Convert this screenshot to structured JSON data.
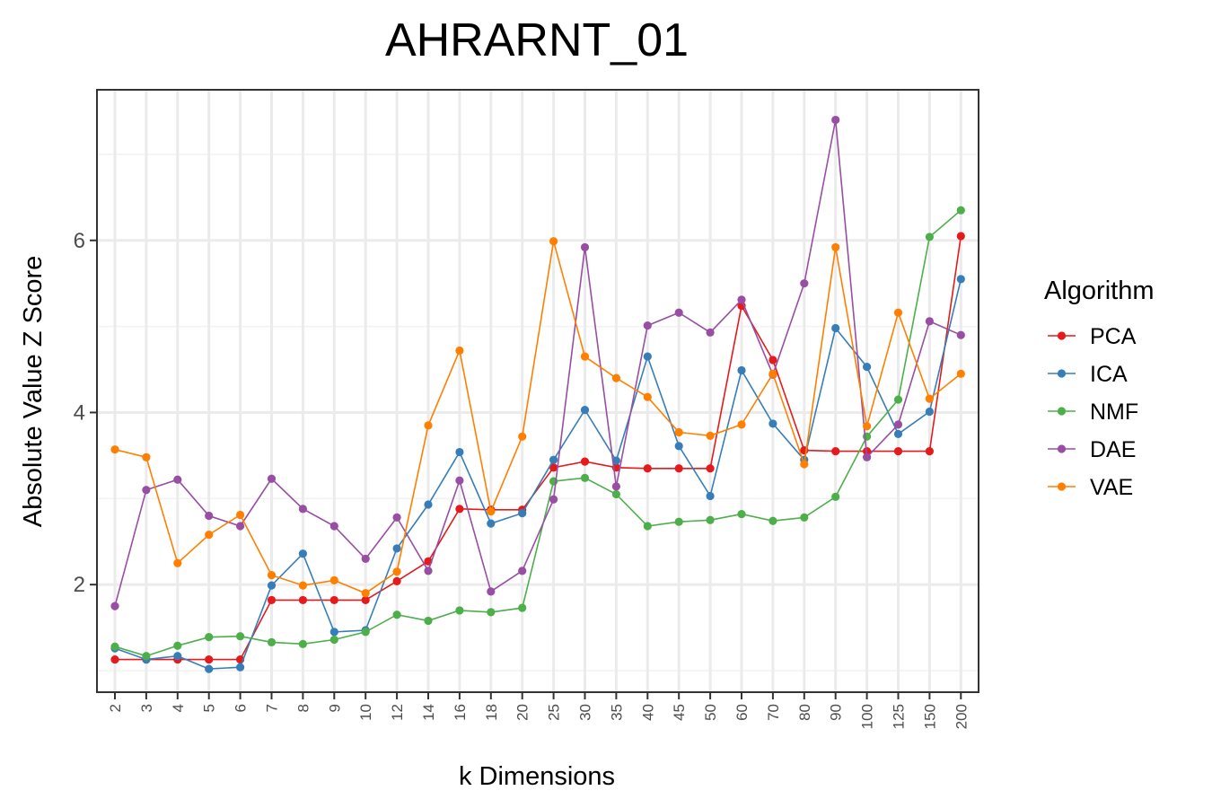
{
  "chart_data": {
    "type": "line",
    "title": "AHRARNT_01",
    "xlabel": "k Dimensions",
    "ylabel": "Absolute Value Z Score",
    "x_type": "categorical",
    "categories": [
      "2",
      "3",
      "4",
      "5",
      "6",
      "7",
      "8",
      "9",
      "10",
      "12",
      "14",
      "16",
      "18",
      "20",
      "25",
      "30",
      "35",
      "40",
      "45",
      "50",
      "60",
      "70",
      "80",
      "90",
      "100",
      "125",
      "150",
      "200"
    ],
    "y_ticks": [
      2,
      4,
      6
    ],
    "ylim": [
      0.75,
      7.75
    ],
    "grid": true,
    "legend": {
      "title": "Algorithm",
      "position": "right"
    },
    "series": [
      {
        "name": "PCA",
        "color": "#e41a1c",
        "values": [
          1.13,
          1.13,
          1.13,
          1.13,
          1.13,
          1.82,
          1.82,
          1.82,
          1.82,
          2.04,
          2.27,
          2.88,
          2.87,
          2.87,
          3.36,
          3.43,
          3.36,
          3.35,
          3.35,
          3.35,
          5.24,
          4.61,
          3.56,
          3.55,
          3.55,
          3.55,
          3.55,
          6.05
        ]
      },
      {
        "name": "ICA",
        "color": "#377eb8",
        "values": [
          1.26,
          1.13,
          1.17,
          1.02,
          1.04,
          1.99,
          2.36,
          1.45,
          1.47,
          2.42,
          2.93,
          3.54,
          2.71,
          2.83,
          3.45,
          4.03,
          3.44,
          4.65,
          3.61,
          3.03,
          4.49,
          3.87,
          3.45,
          4.98,
          4.53,
          3.75,
          4.01,
          5.55
        ]
      },
      {
        "name": "NMF",
        "color": "#4daf4a",
        "values": [
          1.28,
          1.17,
          1.29,
          1.39,
          1.4,
          1.33,
          1.31,
          1.36,
          1.45,
          1.65,
          1.58,
          1.7,
          1.68,
          1.73,
          3.2,
          3.24,
          3.05,
          2.68,
          2.73,
          2.75,
          2.82,
          2.74,
          2.78,
          3.02,
          3.72,
          4.15,
          6.04,
          6.35
        ]
      },
      {
        "name": "DAE",
        "color": "#984ea3",
        "values": [
          1.75,
          3.1,
          3.22,
          2.8,
          2.68,
          3.23,
          2.88,
          2.68,
          2.3,
          2.78,
          2.16,
          3.21,
          1.92,
          2.16,
          2.99,
          5.92,
          3.14,
          5.01,
          5.16,
          4.93,
          5.31,
          4.44,
          5.5,
          7.4,
          3.48,
          3.86,
          5.06,
          4.9
        ]
      },
      {
        "name": "VAE",
        "color": "#ff7f00",
        "values": [
          3.57,
          3.48,
          2.25,
          2.58,
          2.81,
          2.11,
          1.99,
          2.05,
          1.9,
          2.15,
          3.85,
          4.72,
          2.85,
          3.72,
          5.99,
          4.65,
          4.4,
          4.18,
          3.77,
          3.73,
          3.86,
          4.45,
          3.4,
          5.92,
          3.84,
          5.16,
          4.16,
          4.45
        ]
      }
    ]
  }
}
